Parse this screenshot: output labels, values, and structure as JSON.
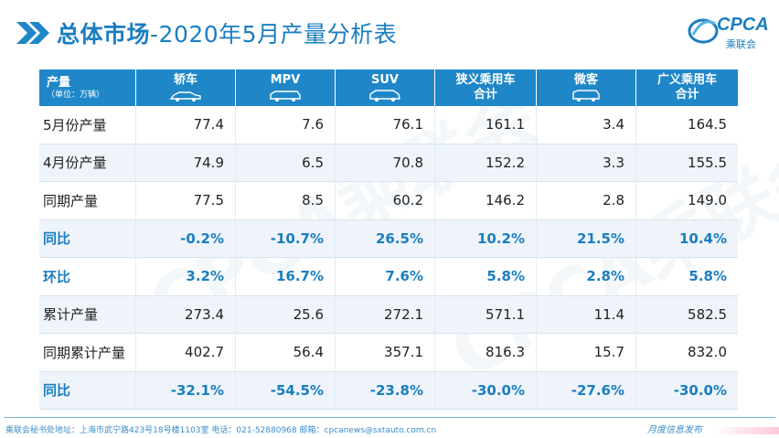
{
  "title": {
    "bold": "总体市场",
    "light": "-2020年5月产量分析表"
  },
  "logo": {
    "brand": "CPCA",
    "sub": "乘联会"
  },
  "watermark": "CPCA乘联会",
  "table": {
    "row_header_label": "产量",
    "row_header_unit": "（单位：万辆）",
    "columns": [
      "轿车",
      "MPV",
      "SUV",
      "狭义乘用车合计",
      "微客",
      "广义乘用车合计"
    ],
    "column_lines": [
      [
        "轿车"
      ],
      [
        "MPV"
      ],
      [
        "SUV"
      ],
      [
        "狭义乘用车",
        "合计"
      ],
      [
        "微客"
      ],
      [
        "广义乘用车",
        "合计"
      ]
    ],
    "column_icons": [
      "sedan-icon",
      "mpv-icon",
      "suv-icon",
      "",
      "minivan-icon",
      ""
    ],
    "rows": [
      {
        "label": "5月份产量",
        "values": [
          "77.4",
          "7.6",
          "76.1",
          "161.1",
          "3.4",
          "164.5"
        ],
        "pct": false
      },
      {
        "label": "4月份产量",
        "values": [
          "74.9",
          "6.5",
          "70.8",
          "152.2",
          "3.3",
          "155.5"
        ],
        "pct": false
      },
      {
        "label": "同期产量",
        "values": [
          "77.5",
          "8.5",
          "60.2",
          "146.2",
          "2.8",
          "149.0"
        ],
        "pct": false
      },
      {
        "label": "同比",
        "values": [
          "-0.2%",
          "-10.7%",
          "26.5%",
          "10.2%",
          "21.5%",
          "10.4%"
        ],
        "pct": true
      },
      {
        "label": "环比",
        "values": [
          "3.2%",
          "16.7%",
          "7.6%",
          "5.8%",
          "2.8%",
          "5.8%"
        ],
        "pct": true
      },
      {
        "label": "累计产量",
        "values": [
          "273.4",
          "25.6",
          "272.1",
          "571.1",
          "11.4",
          "582.5"
        ],
        "pct": false
      },
      {
        "label": "同期累计产量",
        "values": [
          "402.7",
          "56.4",
          "357.1",
          "816.3",
          "15.7",
          "832.0"
        ],
        "pct": false
      },
      {
        "label": "同比",
        "values": [
          "-32.1%",
          "-54.5%",
          "-23.8%",
          "-30.0%",
          "-27.6%",
          "-30.0%"
        ],
        "pct": true
      }
    ]
  },
  "footer": {
    "address": "乘联会秘书处地址：上海市武宁路423号18号楼1103室  电话：021-52880968  邮箱：cpcanews@sxtauto.com.cn",
    "publish": "月度信息发布"
  },
  "colors": {
    "accent": "#1f87c8",
    "title": "#1a7ec0",
    "shade": "#eef4fa"
  }
}
